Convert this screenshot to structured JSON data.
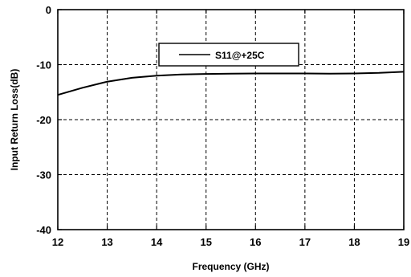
{
  "chart_data": {
    "type": "line",
    "xlabel": "Frequency (GHz)",
    "ylabel": "Input Return Loss(dB)",
    "xlim": [
      12,
      19
    ],
    "ylim": [
      -40,
      0
    ],
    "xticks": [
      12,
      13,
      14,
      15,
      16,
      17,
      18,
      19
    ],
    "yticks": [
      0,
      -10,
      -20,
      -30,
      -40
    ],
    "grid": true,
    "grid_style": "dashed",
    "legend_position": "top-center",
    "series": [
      {
        "name": "S11@+25C",
        "color": "#000000",
        "x": [
          12,
          12.5,
          13,
          13.5,
          14,
          14.5,
          15,
          15.5,
          16,
          16.5,
          17,
          17.5,
          18,
          18.5,
          19
        ],
        "y": [
          -15.5,
          -14.2,
          -13.1,
          -12.4,
          -12.0,
          -11.8,
          -11.7,
          -11.65,
          -11.6,
          -11.6,
          -11.6,
          -11.65,
          -11.6,
          -11.5,
          -11.3
        ]
      }
    ]
  }
}
